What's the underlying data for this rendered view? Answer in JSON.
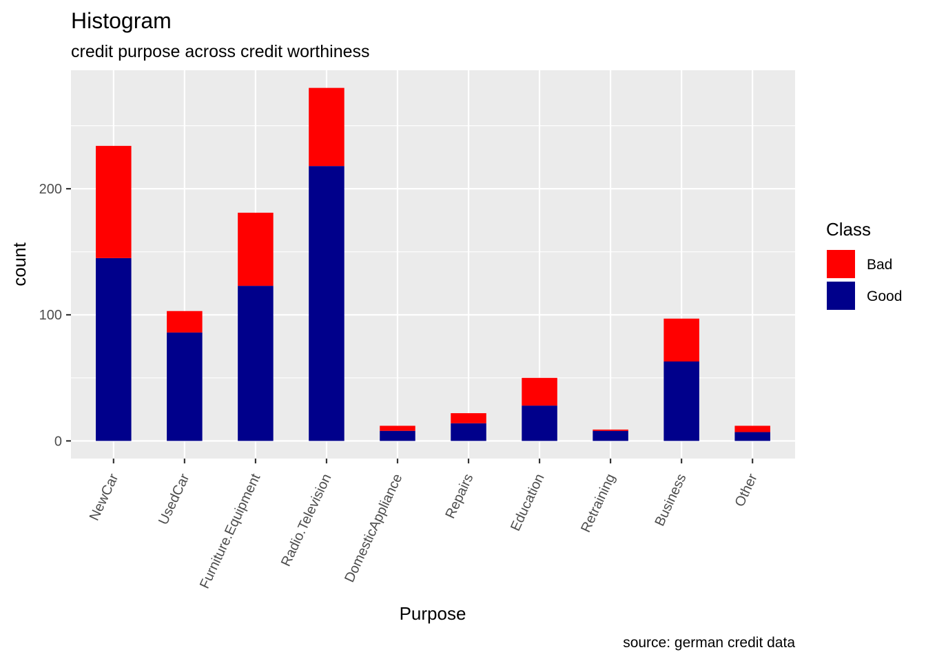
{
  "colors": {
    "panel_bg": "#EBEBEB",
    "grid": "#FFFFFF",
    "tick": "#333333",
    "Bad": "#FF0000",
    "Good": "#00008B"
  },
  "chart_data": {
    "type": "bar",
    "stacked": true,
    "title": "Histogram",
    "subtitle": "credit purpose across credit worthiness",
    "xlabel": "Purpose",
    "ylabel": "count",
    "caption": "source: german credit data",
    "categories": [
      "NewCar",
      "UsedCar",
      "Furniture.Equipment",
      "Radio.Television",
      "DomesticAppliance",
      "Repairs",
      "Education",
      "Retraining",
      "Business",
      "Other"
    ],
    "series": [
      {
        "name": "Good",
        "values": [
          145,
          86,
          123,
          218,
          8,
          14,
          28,
          8,
          63,
          7
        ]
      },
      {
        "name": "Bad",
        "values": [
          89,
          17,
          58,
          62,
          4,
          8,
          22,
          1,
          34,
          5
        ]
      }
    ],
    "yticks": [
      0,
      100,
      200
    ],
    "ylim": [
      -14,
      294
    ],
    "grid": true,
    "legend": {
      "title": "Class",
      "position": "right",
      "items": [
        {
          "name": "Bad",
          "label": "Bad"
        },
        {
          "name": "Good",
          "label": "Good"
        }
      ]
    }
  }
}
